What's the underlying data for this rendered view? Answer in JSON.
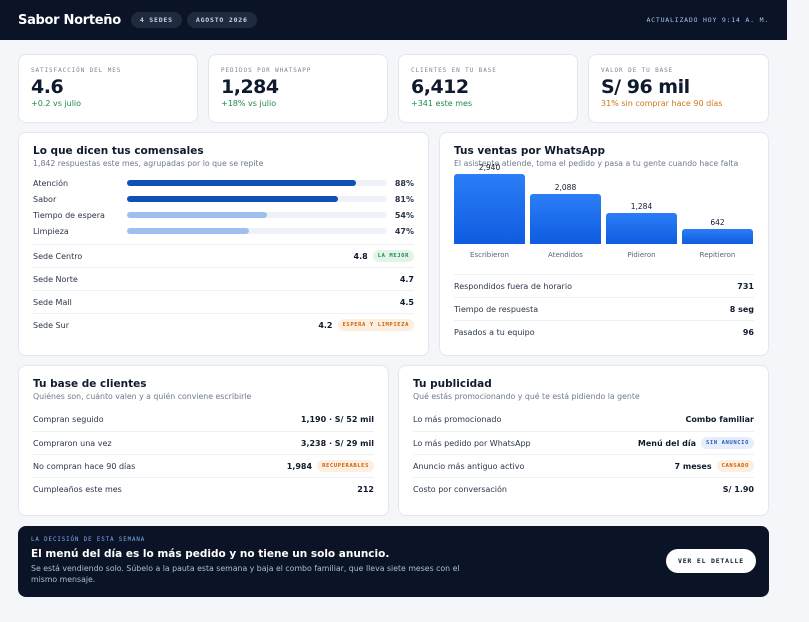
{
  "header": {
    "brand": "Sabor Norteño",
    "pills": [
      "4 SEDES",
      "AGOSTO 2026"
    ],
    "updated": "ACTUALIZADO HOY 9:14 A. M."
  },
  "kpis": [
    {
      "label": "SATISFACCIÓN DEL MES",
      "value": "4.6",
      "delta": "+0.2 vs julio",
      "tone": "pos"
    },
    {
      "label": "PEDIDOS POR WHATSAPP",
      "value": "1,284",
      "delta": "+18% vs julio",
      "tone": "pos"
    },
    {
      "label": "CLIENTES EN TU BASE",
      "value": "6,412",
      "delta": "+341 este mes",
      "tone": "pos"
    },
    {
      "label": "VALOR DE TU BASE",
      "value": "S/ 96 mil",
      "delta": "31% sin comprar hace 90 días",
      "tone": "warn"
    }
  ],
  "comensales": {
    "title": "Lo que dicen tus comensales",
    "subtitle": "1,842 respuestas este mes, agrupadas por lo que se repite",
    "bars": [
      {
        "label": "Atención",
        "pct": "88%",
        "value": 88,
        "color": "#0f4fb8"
      },
      {
        "label": "Sabor",
        "pct": "81%",
        "value": 81,
        "color": "#0f4fb8"
      },
      {
        "label": "Tiempo de espera",
        "pct": "54%",
        "value": 54,
        "color": "#9fc0ef"
      },
      {
        "label": "Limpieza",
        "pct": "47%",
        "value": 47,
        "color": "#9fc0ef"
      }
    ],
    "sedes": [
      {
        "label": "Sede Centro",
        "score": "4.8",
        "tag": "LA MEJOR",
        "tagtone": "green"
      },
      {
        "label": "Sede Norte",
        "score": "4.7",
        "tag": "",
        "tagtone": ""
      },
      {
        "label": "Sede Mall",
        "score": "4.5",
        "tag": "",
        "tagtone": ""
      },
      {
        "label": "Sede Sur",
        "score": "4.2",
        "tag": "ESPERA Y LIMPIEZA",
        "tagtone": "orange"
      }
    ]
  },
  "whatsapp": {
    "title": "Tus ventas por WhatsApp",
    "subtitle": "El asistente atiende, toma el pedido y pasa a tu gente cuando hace falta",
    "rows": [
      {
        "label": "Respondidos fuera de horario",
        "value": "731"
      },
      {
        "label": "Tiempo de respuesta",
        "value": "8 seg"
      },
      {
        "label": "Pasados a tu equipo",
        "value": "96"
      }
    ]
  },
  "chart_data": {
    "type": "bar",
    "categories": [
      "Escribieron",
      "Atendidos",
      "Pidieron",
      "Repitieron"
    ],
    "values": [
      2940,
      2088,
      1284,
      642
    ],
    "value_labels": [
      "2,940",
      "2,088",
      "1,284",
      "642"
    ],
    "title": "",
    "xlabel": "",
    "ylabel": "",
    "color": "#1a6cf0"
  },
  "base": {
    "title": "Tu base de clientes",
    "subtitle": "Quiénes son, cuánto valen y a quién conviene escribirle",
    "rows": [
      {
        "label": "Compran seguido",
        "value": "1,190 · S/ 52 mil",
        "tag": "",
        "tagtone": ""
      },
      {
        "label": "Compraron una vez",
        "value": "3,238 · S/ 29 mil",
        "tag": "",
        "tagtone": ""
      },
      {
        "label": "No compran hace 90 días",
        "value": "1,984",
        "tag": "RECUPERABLES",
        "tagtone": "orange"
      },
      {
        "label": "Cumpleaños este mes",
        "value": "212",
        "tag": "",
        "tagtone": ""
      }
    ]
  },
  "publicidad": {
    "title": "Tu publicidad",
    "subtitle": "Qué estás promocionando y qué te está pidiendo la gente",
    "rows": [
      {
        "label": "Lo más promocionado",
        "value": "Combo familiar",
        "tag": "",
        "tagtone": ""
      },
      {
        "label": "Lo más pedido por WhatsApp",
        "value": "Menú del día",
        "tag": "SIN ANUNCIO",
        "tagtone": "blue"
      },
      {
        "label": "Anuncio más antiguo activo",
        "value": "7 meses",
        "tag": "CANSADO",
        "tagtone": "orange"
      },
      {
        "label": "Costo por conversación",
        "value": "S/ 1.90",
        "tag": "",
        "tagtone": ""
      }
    ]
  },
  "decision": {
    "kicker": "LA DECISIÓN DE ESTA SEMANA",
    "headline": "El menú del día es lo más pedido y no tiene un solo anuncio.",
    "body": "Se está vendiendo solo. Súbelo a la pauta esta semana y baja el combo familiar, que lleva siete meses con el mismo mensaje.",
    "cta": "VER EL DETALLE"
  }
}
